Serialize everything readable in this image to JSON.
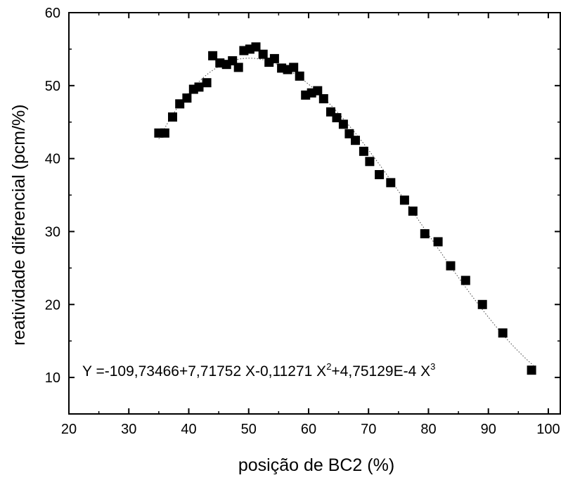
{
  "chart_data": {
    "type": "scatter",
    "title": "",
    "xlabel": "posição de BC2 (%)",
    "ylabel": "reatividade diferencial (pcm/%)",
    "xlim": [
      20,
      102
    ],
    "ylim": [
      5,
      60
    ],
    "xticks": [
      20,
      30,
      40,
      50,
      60,
      70,
      80,
      90,
      100
    ],
    "yticks": [
      10,
      20,
      30,
      40,
      50,
      60
    ],
    "grid": false,
    "legend": "none",
    "marker_color": "#000000",
    "fit_line_color": "#444444",
    "equation": {
      "prefix": "Y =-109,73466+7,71752 X-0,11271 X",
      "exp1": "2",
      "mid": "+4,75129E-4 X",
      "exp2": "3"
    },
    "fit_coefficients": [
      -109.73466,
      7.71752,
      -0.11271,
      0.000475129
    ],
    "series": [
      {
        "points": [
          [
            35,
            43.5
          ],
          [
            36,
            43.5
          ],
          [
            37.3,
            45.7
          ],
          [
            38.5,
            47.5
          ],
          [
            39.7,
            48.3
          ],
          [
            40.8,
            49.5
          ],
          [
            41.7,
            49.8
          ],
          [
            43,
            50.4
          ],
          [
            44,
            54.1
          ],
          [
            45.2,
            53.1
          ],
          [
            46.3,
            52.9
          ],
          [
            47.3,
            53.4
          ],
          [
            48.3,
            52.5
          ],
          [
            49.2,
            54.8
          ],
          [
            50.2,
            55.0
          ],
          [
            51.2,
            55.3
          ],
          [
            52.4,
            54.3
          ],
          [
            53.4,
            53.2
          ],
          [
            54.3,
            53.7
          ],
          [
            55.5,
            52.4
          ],
          [
            56.5,
            52.2
          ],
          [
            57.5,
            52.5
          ],
          [
            58.5,
            51.3
          ],
          [
            59.5,
            48.7
          ],
          [
            60.5,
            49.0
          ],
          [
            61.5,
            49.3
          ],
          [
            62.5,
            48.2
          ],
          [
            63.7,
            46.4
          ],
          [
            64.7,
            45.6
          ],
          [
            65.8,
            44.7
          ],
          [
            66.8,
            43.4
          ],
          [
            67.8,
            42.5
          ],
          [
            69.2,
            41.0
          ],
          [
            70.2,
            39.6
          ],
          [
            71.8,
            37.8
          ],
          [
            73.7,
            36.7
          ],
          [
            76,
            34.3
          ],
          [
            77.4,
            32.8
          ],
          [
            79.4,
            29.7
          ],
          [
            81.6,
            28.6
          ],
          [
            83.7,
            25.3
          ],
          [
            86.2,
            23.3
          ],
          [
            89,
            20.0
          ],
          [
            92.4,
            16.1
          ],
          [
            97.2,
            11.0
          ]
        ]
      }
    ]
  }
}
